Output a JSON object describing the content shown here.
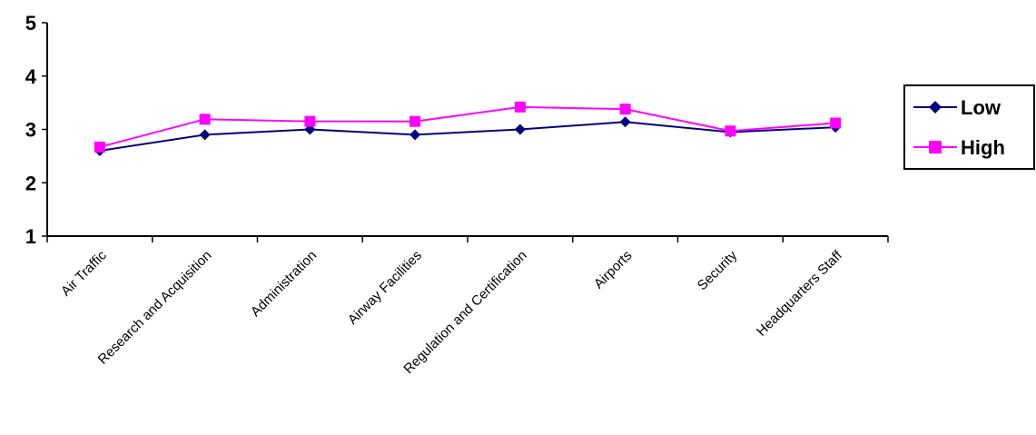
{
  "chart_data": {
    "type": "line",
    "title": "",
    "xlabel": "",
    "ylabel": "",
    "categories": [
      "Air Traffic",
      "Research and Acquisition",
      "Administration",
      "Airway Facilities",
      "Regulation and Certification",
      "Airports",
      "Security",
      "Headquarters Staff"
    ],
    "ylim": [
      1,
      5
    ],
    "yticks": [
      "1",
      "2",
      "3",
      "4",
      "5"
    ],
    "grid": false,
    "legend_position": "right",
    "series": [
      {
        "name": "Low",
        "color": "#000080",
        "marker": "diamond",
        "values": [
          2.6,
          2.9,
          3.0,
          2.9,
          3.0,
          3.14,
          2.95,
          3.04
        ]
      },
      {
        "name": "High",
        "color": "#FF00FF",
        "marker": "square",
        "values": [
          2.67,
          3.19,
          3.15,
          3.15,
          3.42,
          3.38,
          2.97,
          3.12
        ]
      }
    ]
  }
}
